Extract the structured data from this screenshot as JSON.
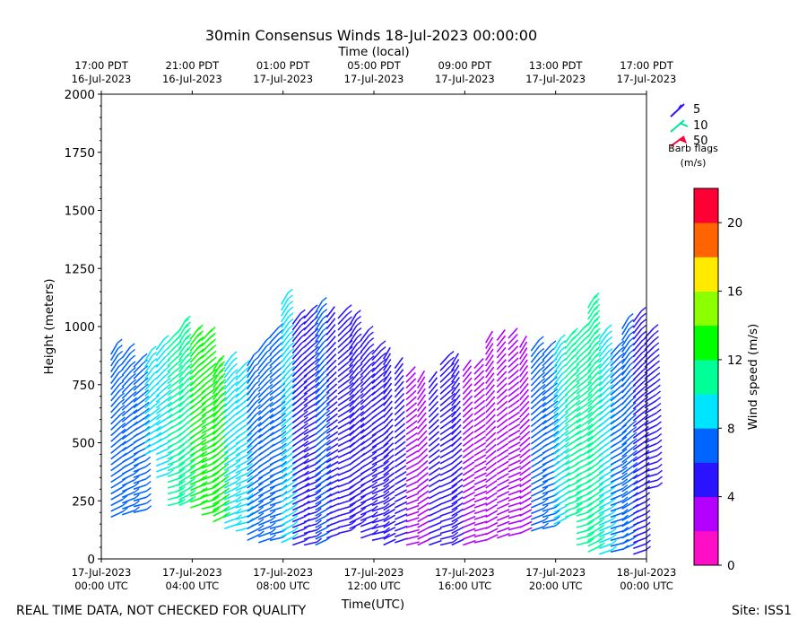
{
  "chart_data": {
    "type": "wind-barb",
    "title": "30min Consensus Winds 18-Jul-2023 00:00:00",
    "xlabel": "Time(UTC)",
    "top_xlabel": "Time (local)",
    "ylabel": "Height (meters)",
    "xlim_hours": [
      0,
      24
    ],
    "ylim": [
      0,
      2000
    ],
    "y_ticks": [
      0,
      250,
      500,
      750,
      1000,
      1250,
      1500,
      1750,
      2000
    ],
    "x_ticks": [
      {
        "hour": 0,
        "date": "17-Jul-2023",
        "time": "00:00 UTC"
      },
      {
        "hour": 4,
        "date": "17-Jul-2023",
        "time": "04:00 UTC"
      },
      {
        "hour": 8,
        "date": "17-Jul-2023",
        "time": "08:00 UTC"
      },
      {
        "hour": 12,
        "date": "17-Jul-2023",
        "time": "12:00 UTC"
      },
      {
        "hour": 16,
        "date": "17-Jul-2023",
        "time": "16:00 UTC"
      },
      {
        "hour": 20,
        "date": "17-Jul-2023",
        "time": "20:00 UTC"
      },
      {
        "hour": 24,
        "date": "18-Jul-2023",
        "time": "00:00 UTC"
      }
    ],
    "top_ticks": [
      {
        "hour": 0,
        "time": "17:00 PDT",
        "date": "16-Jul-2023"
      },
      {
        "hour": 4,
        "time": "21:00 PDT",
        "date": "16-Jul-2023"
      },
      {
        "hour": 8,
        "time": "01:00 PDT",
        "date": "17-Jul-2023"
      },
      {
        "hour": 12,
        "time": "05:00 PDT",
        "date": "17-Jul-2023"
      },
      {
        "hour": 16,
        "time": "09:00 PDT",
        "date": "17-Jul-2023"
      },
      {
        "hour": 20,
        "time": "13:00 PDT",
        "date": "17-Jul-2023"
      },
      {
        "hour": 24,
        "time": "17:00 PDT",
        "date": "17-Jul-2023"
      }
    ],
    "barb_legend": {
      "entries": [
        {
          "label": "5",
          "color": "#2a14ff"
        },
        {
          "label": "10",
          "color": "#00e6a0"
        },
        {
          "label": "50",
          "color": "#ff0035"
        }
      ],
      "title": "Barb flags",
      "units": "(m/s)"
    },
    "colorbar": {
      "label": "Wind speed (m/s)",
      "range": [
        0,
        22
      ],
      "ticks": [
        0,
        4,
        8,
        12,
        16,
        20
      ],
      "colors": [
        "#ff0ec8",
        "#b400ff",
        "#2a14ff",
        "#0064ff",
        "#00e5ff",
        "#00ff96",
        "#00ff00",
        "#8cff00",
        "#ffea00",
        "#ff6400",
        "#ff0035"
      ]
    },
    "columns": [
      {
        "hour": 0.5,
        "h0": 180,
        "h1": 880,
        "speed": 6.5
      },
      {
        "hour": 1.0,
        "h0": 190,
        "h1": 870,
        "speed": 6.5
      },
      {
        "hour": 1.5,
        "h0": 200,
        "h1": 840,
        "speed": 7.0
      },
      {
        "hour": 2.0,
        "h0": 450,
        "h1": 850,
        "speed": 8.5
      },
      {
        "hour": 2.5,
        "h0": 350,
        "h1": 900,
        "speed": 9.5
      },
      {
        "hour": 3.0,
        "h0": 230,
        "h1": 930,
        "speed": 10.5
      },
      {
        "hour": 3.5,
        "h0": 230,
        "h1": 990,
        "speed": 11.0
      },
      {
        "hour": 4.0,
        "h0": 220,
        "h1": 960,
        "speed": 12.5
      },
      {
        "hour": 4.5,
        "h0": 190,
        "h1": 960,
        "speed": 13.5
      },
      {
        "hour": 5.0,
        "h0": 160,
        "h1": 820,
        "speed": 13.0
      },
      {
        "hour": 5.5,
        "h0": 130,
        "h1": 830,
        "speed": 9.0
      },
      {
        "hour": 6.0,
        "h0": 120,
        "h1": 800,
        "speed": 8.5
      },
      {
        "hour": 6.5,
        "h0": 80,
        "h1": 850,
        "speed": 7.0
      },
      {
        "hour": 7.0,
        "h0": 70,
        "h1": 900,
        "speed": 6.5
      },
      {
        "hour": 7.5,
        "h0": 80,
        "h1": 960,
        "speed": 6.0
      },
      {
        "hour": 8.0,
        "h0": 70,
        "h1": 1100,
        "speed": 8.0
      },
      {
        "hour": 8.5,
        "h0": 60,
        "h1": 1020,
        "speed": 5.5
      },
      {
        "hour": 9.0,
        "h0": 60,
        "h1": 1050,
        "speed": 5.0
      },
      {
        "hour": 9.5,
        "h0": 60,
        "h1": 1080,
        "speed": 7.5
      },
      {
        "hour": 10.0,
        "h0": 90,
        "h1": 1060,
        "speed": 4.5
      },
      {
        "hour": 10.5,
        "h0": 110,
        "h1": 1040,
        "speed": 5.5
      },
      {
        "hour": 11.0,
        "h0": 130,
        "h1": 1020,
        "speed": 5.0
      },
      {
        "hour": 11.5,
        "h0": 90,
        "h1": 950,
        "speed": 5.0
      },
      {
        "hour": 12.0,
        "h0": 80,
        "h1": 880,
        "speed": 5.0
      },
      {
        "hour": 12.5,
        "h0": 60,
        "h1": 860,
        "speed": 4.0
      },
      {
        "hour": 13.0,
        "h0": 70,
        "h1": 820,
        "speed": 4.0
      },
      {
        "hour": 13.5,
        "h0": 60,
        "h1": 800,
        "speed": 3.0
      },
      {
        "hour": 14.0,
        "h0": 60,
        "h1": 780,
        "speed": 3.0
      },
      {
        "hour": 14.5,
        "h0": 60,
        "h1": 770,
        "speed": 4.5
      },
      {
        "hour": 15.0,
        "h0": 60,
        "h1": 840,
        "speed": 5.0
      },
      {
        "hour": 15.5,
        "h0": 60,
        "h1": 850,
        "speed": 4.5
      },
      {
        "hour": 16.0,
        "h0": 60,
        "h1": 820,
        "speed": 3.5
      },
      {
        "hour": 16.5,
        "h0": 70,
        "h1": 830,
        "speed": 3.5
      },
      {
        "hour": 17.0,
        "h0": 80,
        "h1": 950,
        "speed": 2.5
      },
      {
        "hour": 17.5,
        "h0": 90,
        "h1": 960,
        "speed": 3.0
      },
      {
        "hour": 18.0,
        "h0": 100,
        "h1": 950,
        "speed": 3.0
      },
      {
        "hour": 18.5,
        "h0": 110,
        "h1": 920,
        "speed": 3.5
      },
      {
        "hour": 19.0,
        "h0": 120,
        "h1": 900,
        "speed": 6.5
      },
      {
        "hour": 19.5,
        "h0": 130,
        "h1": 880,
        "speed": 7.5
      },
      {
        "hour": 20.0,
        "h0": 150,
        "h1": 920,
        "speed": 8.5
      },
      {
        "hour": 20.5,
        "h0": 180,
        "h1": 950,
        "speed": 10.5
      },
      {
        "hour": 21.0,
        "h0": 60,
        "h1": 980,
        "speed": 11.0
      },
      {
        "hour": 21.5,
        "h0": 30,
        "h1": 1100,
        "speed": 11.5
      },
      {
        "hour": 22.0,
        "h0": 20,
        "h1": 950,
        "speed": 9.0
      },
      {
        "hour": 22.5,
        "h0": 30,
        "h1": 880,
        "speed": 6.5
      },
      {
        "hour": 23.0,
        "h0": 40,
        "h1": 1000,
        "speed": 6.0
      },
      {
        "hour": 23.5,
        "h0": 20,
        "h1": 1020,
        "speed": 5.0
      },
      {
        "hour": 24.0,
        "h0": 300,
        "h1": 950,
        "speed": 5.0
      }
    ],
    "annotation_left": "REAL TIME DATA, NOT CHECKED FOR QUALITY",
    "annotation_right": "Site: ISS1"
  }
}
